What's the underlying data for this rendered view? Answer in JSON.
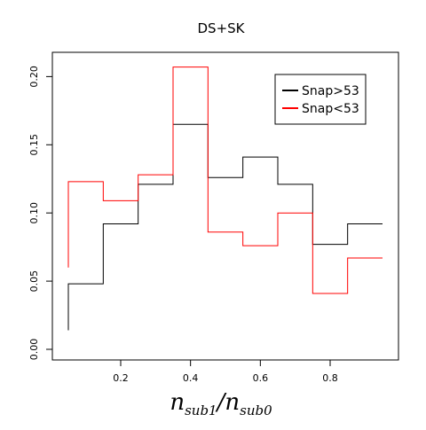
{
  "chart_data": {
    "type": "line",
    "title": "DS+SK",
    "xlabel": {
      "base1": "n",
      "sub1": "sub1",
      "slash": "/",
      "base2": "n",
      "sub2": "sub0"
    },
    "ylabel": "",
    "xlim": [
      0.0,
      1.0
    ],
    "ylim": [
      0.0,
      0.21
    ],
    "x_ticks": [
      0.2,
      0.4,
      0.6,
      0.8
    ],
    "x_tick_labels": [
      "0.2",
      "0.4",
      "0.6",
      "0.8"
    ],
    "y_ticks": [
      0.0,
      0.05,
      0.1,
      0.15,
      0.2
    ],
    "y_tick_labels": [
      "0.00",
      "0.05",
      "0.10",
      "0.15",
      "0.20"
    ],
    "grid": false,
    "legend_position": "top-right",
    "bin_edges": [
      0.05,
      0.15,
      0.25,
      0.35,
      0.45,
      0.55,
      0.65,
      0.75,
      0.85,
      0.95
    ],
    "series": [
      {
        "name": "Snap>53",
        "color": "#000000",
        "start_value": 0.014,
        "values": [
          0.048,
          0.092,
          0.121,
          0.165,
          0.126,
          0.141,
          0.121,
          0.077,
          0.092
        ]
      },
      {
        "name": "Snap<53",
        "color": "#ff0000",
        "start_value": 0.06,
        "values": [
          0.123,
          0.109,
          0.128,
          0.207,
          0.086,
          0.076,
          0.1,
          0.041,
          0.067
        ]
      }
    ]
  }
}
